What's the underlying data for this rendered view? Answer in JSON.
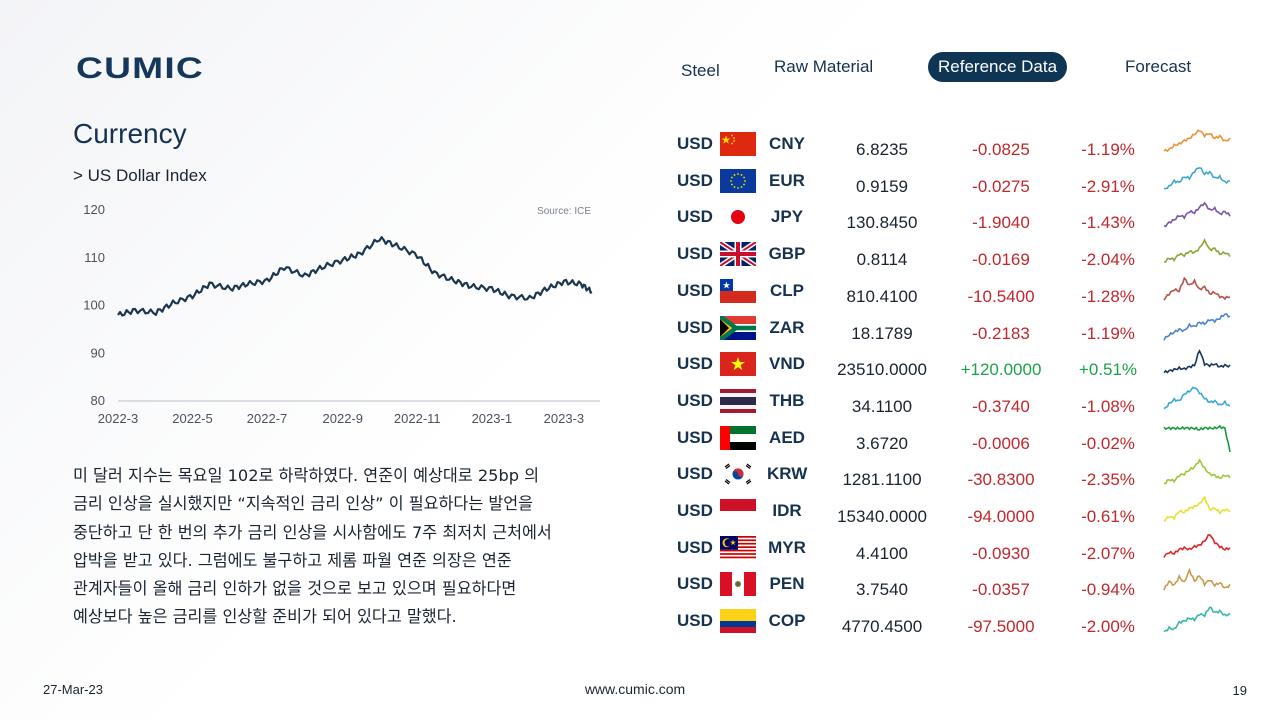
{
  "brand": {
    "logo_text": "CUMIC"
  },
  "nav": [
    {
      "label": "Steel",
      "active": false
    },
    {
      "label": "Raw Material",
      "active": false
    },
    {
      "label": "Reference Data",
      "active": true
    },
    {
      "label": "Forecast",
      "active": false
    }
  ],
  "section": {
    "title": "Currency",
    "subtitle": "> US Dollar Index"
  },
  "chart_data": {
    "type": "line",
    "title": "",
    "source": "Source: ICE",
    "xlabel": "",
    "ylabel": "",
    "x_ticks": [
      "2022-3",
      "2022-5",
      "2022-7",
      "2022-9",
      "2022-11",
      "2023-1",
      "2023-3"
    ],
    "y_ticks": [
      80,
      90,
      100,
      110,
      120
    ],
    "ylim": [
      80,
      120
    ],
    "x": [
      "2022-03-01",
      "2022-03-15",
      "2022-04-01",
      "2022-04-15",
      "2022-05-01",
      "2022-05-15",
      "2022-06-01",
      "2022-06-15",
      "2022-07-01",
      "2022-07-15",
      "2022-08-01",
      "2022-08-15",
      "2022-09-01",
      "2022-09-15",
      "2022-10-01",
      "2022-10-15",
      "2022-11-01",
      "2022-11-15",
      "2022-12-01",
      "2022-12-15",
      "2023-01-01",
      "2023-01-15",
      "2023-02-01",
      "2023-02-15",
      "2023-03-01",
      "2023-03-15",
      "2023-03-24"
    ],
    "series": [
      {
        "values": [
          98.0,
          99.0,
          98.5,
          100.5,
          102.0,
          104.5,
          103.5,
          104.5,
          105.2,
          108.0,
          106.2,
          108.0,
          109.5,
          110.8,
          114.0,
          112.5,
          110.5,
          106.8,
          105.2,
          104.0,
          103.5,
          102.0,
          101.5,
          103.5,
          105.0,
          104.5,
          102.8
        ]
      }
    ],
    "grid": false,
    "legend": "none",
    "line_color": "#1c3650"
  },
  "commentary": [
    "미 달러 지수는 목요일 102로 하락하였다. 연준이 예상대로 25bp 의",
    "금리 인상을 실시했지만 “지속적인 금리 인상” 이 필요하다는 발언을",
    "중단하고 단 한 번의 추가 금리 인상을 시사함에도 7주 최저치 근처에서",
    "압박을 받고 있다. 그럼에도 불구하고 제롬 파월 연준 의장은 연준",
    "관계자들이 올해 금리 인하가 없을 것으로 보고 있으며 필요하다면",
    "예상보다 높은 금리를 인상할 준비가 되어 있다고 말했다."
  ],
  "fx": [
    {
      "base": "USD",
      "flag": "cn-flag-icon",
      "quote": "CNY",
      "rate": "6.8235",
      "change": "-0.0825",
      "pct": "-1.19%",
      "dir": "neg",
      "spark_color": "#e8943a",
      "trend": [
        0.25,
        0.3,
        0.45,
        0.5,
        0.62,
        0.7,
        0.85,
        1.0,
        0.8,
        0.88,
        0.7,
        0.78,
        0.6,
        0.68
      ]
    },
    {
      "base": "USD",
      "flag": "eu-flag-icon",
      "quote": "EUR",
      "rate": "0.9159",
      "change": "-0.0275",
      "pct": "-2.91%",
      "dir": "neg",
      "spark_color": "#3fa8c5",
      "trend": [
        0.2,
        0.3,
        0.5,
        0.45,
        0.65,
        0.6,
        0.85,
        1.0,
        0.75,
        0.82,
        0.6,
        0.65,
        0.45,
        0.5
      ]
    },
    {
      "base": "USD",
      "flag": "jp-flag-icon",
      "quote": "JPY",
      "rate": "130.8450",
      "change": "-1.9040",
      "pct": "-1.43%",
      "dir": "neg",
      "spark_color": "#7a55a8",
      "trend": [
        0.15,
        0.3,
        0.4,
        0.55,
        0.5,
        0.7,
        0.65,
        0.85,
        1.0,
        0.75,
        0.8,
        0.6,
        0.7,
        0.55
      ]
    },
    {
      "base": "USD",
      "flag": "gb-flag-icon",
      "quote": "GBP",
      "rate": "0.8114",
      "change": "-0.0169",
      "pct": "-2.04%",
      "dir": "neg",
      "spark_color": "#8aa83a",
      "trend": [
        0.2,
        0.35,
        0.3,
        0.5,
        0.45,
        0.6,
        0.55,
        0.7,
        1.0,
        0.65,
        0.7,
        0.5,
        0.55,
        0.45
      ]
    },
    {
      "base": "USD",
      "flag": "cl-flag-icon",
      "quote": "CLP",
      "rate": "810.4100",
      "change": "-10.5400",
      "pct": "-1.28%",
      "dir": "neg",
      "spark_color": "#b5524a",
      "trend": [
        0.2,
        0.4,
        0.55,
        0.5,
        0.95,
        0.7,
        0.85,
        0.55,
        0.65,
        0.4,
        0.45,
        0.3,
        0.25,
        0.3
      ]
    },
    {
      "base": "USD",
      "flag": "za-flag-icon",
      "quote": "ZAR",
      "rate": "18.1789",
      "change": "-0.2183",
      "pct": "-1.19%",
      "dir": "neg",
      "spark_color": "#4a86c8",
      "trend": [
        0.1,
        0.25,
        0.35,
        0.45,
        0.4,
        0.6,
        0.55,
        0.7,
        0.65,
        0.8,
        0.75,
        0.85,
        1.0,
        0.9
      ]
    },
    {
      "base": "USD",
      "flag": "vn-flag-icon",
      "quote": "VND",
      "rate": "23510.0000",
      "change": "+120.0000",
      "pct": "+0.51%",
      "dir": "pos",
      "spark_color": "#17375a",
      "trend": [
        0.2,
        0.25,
        0.3,
        0.35,
        0.32,
        0.4,
        0.45,
        1.0,
        0.5,
        0.45,
        0.5,
        0.4,
        0.45,
        0.42
      ]
    },
    {
      "base": "USD",
      "flag": "th-flag-icon",
      "quote": "THB",
      "rate": "34.1100",
      "change": "-0.3740",
      "pct": "-1.08%",
      "dir": "neg",
      "spark_color": "#3aa8d8",
      "trend": [
        0.2,
        0.4,
        0.55,
        0.5,
        0.75,
        0.85,
        1.0,
        0.8,
        0.6,
        0.45,
        0.5,
        0.35,
        0.45,
        0.3
      ]
    },
    {
      "base": "USD",
      "flag": "ae-flag-icon",
      "quote": "AED",
      "rate": "3.6720",
      "change": "-0.0006",
      "pct": "-0.02%",
      "dir": "neg",
      "spark_color": "#1a9a3a",
      "trend": [
        0.85,
        0.85,
        0.85,
        0.84,
        0.86,
        0.85,
        0.85,
        0.8,
        0.86,
        0.85,
        0.85,
        0.9,
        0.85,
        0.0
      ]
    },
    {
      "base": "USD",
      "flag": "kr-flag-icon",
      "quote": "KRW",
      "rate": "1281.1100",
      "change": "-30.8300",
      "pct": "-2.35%",
      "dir": "neg",
      "spark_color": "#9ac83a",
      "trend": [
        0.15,
        0.3,
        0.25,
        0.45,
        0.5,
        0.65,
        0.75,
        1.0,
        0.7,
        0.5,
        0.45,
        0.35,
        0.45,
        0.4
      ]
    },
    {
      "base": "USD",
      "flag": "id-flag-icon",
      "quote": "IDR",
      "rate": "15340.0000",
      "change": "-94.0000",
      "pct": "-0.61%",
      "dir": "neg",
      "spark_color": "#e8e030",
      "trend": [
        0.15,
        0.3,
        0.25,
        0.5,
        0.45,
        0.6,
        0.65,
        0.75,
        1.0,
        0.55,
        0.6,
        0.45,
        0.55,
        0.5
      ]
    },
    {
      "base": "USD",
      "flag": "my-flag-icon",
      "quote": "MYR",
      "rate": "4.4100",
      "change": "-0.0930",
      "pct": "-2.07%",
      "dir": "neg",
      "spark_color": "#d8282a",
      "trend": [
        0.2,
        0.35,
        0.3,
        0.45,
        0.5,
        0.45,
        0.55,
        0.6,
        0.75,
        1.0,
        0.7,
        0.55,
        0.45,
        0.5
      ]
    },
    {
      "base": "USD",
      "flag": "pe-flag-icon",
      "quote": "PEN",
      "rate": "3.7540",
      "change": "-0.0357",
      "pct": "-0.94%",
      "dir": "neg",
      "spark_color": "#c89a50",
      "trend": [
        0.3,
        0.6,
        0.45,
        0.75,
        0.55,
        1.0,
        0.6,
        0.8,
        0.5,
        0.65,
        0.45,
        0.55,
        0.35,
        0.45
      ]
    },
    {
      "base": "USD",
      "flag": "co-flag-icon",
      "quote": "COP",
      "rate": "4770.4500",
      "change": "-97.5000",
      "pct": "-2.00%",
      "dir": "neg",
      "spark_color": "#3ab5a8",
      "trend": [
        0.1,
        0.25,
        0.2,
        0.45,
        0.5,
        0.6,
        0.55,
        0.75,
        0.7,
        1.0,
        0.8,
        0.85,
        0.7,
        0.75
      ]
    }
  ],
  "footer": {
    "date": "27-Mar-23",
    "website": "www.cumic.com",
    "page": "19"
  }
}
